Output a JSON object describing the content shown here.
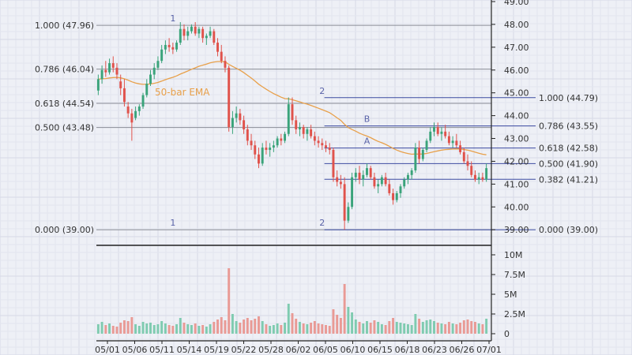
{
  "chart_data": {
    "type": "candlestick",
    "x_tick_labels": [
      "05/01",
      "05/06",
      "05/11",
      "05/14",
      "05/19",
      "05/22",
      "05/28",
      "06/02",
      "06/05",
      "06/10",
      "06/15",
      "06/18",
      "06/23",
      "06/26",
      "07/01"
    ],
    "price_axis": {
      "ylim": [
        38.8,
        49.0
      ],
      "ticks": [
        "39.00",
        "40.00",
        "41.00",
        "42.00",
        "43.00",
        "44.00",
        "45.00",
        "46.00",
        "47.00",
        "48.00",
        "49.00"
      ],
      "tick_values": [
        39,
        40,
        41,
        42,
        43,
        44,
        45,
        46,
        47,
        48,
        49
      ]
    },
    "volume_axis": {
      "ylim": [
        0,
        10500000
      ],
      "ticks": [
        "0",
        "2.5M",
        "5M",
        "7.5M",
        "10M"
      ],
      "tick_values": [
        0,
        2500000,
        5000000,
        7500000,
        10000000
      ]
    },
    "ema_label": "50-bar EMA",
    "fib_left": {
      "levels": [
        {
          "ratio": 1.0,
          "price": 47.96,
          "label": "1.000 (47.96)"
        },
        {
          "ratio": 0.786,
          "price": 46.04,
          "label": "0.786 (46.04)"
        },
        {
          "ratio": 0.618,
          "price": 44.54,
          "label": "0.618 (44.54)"
        },
        {
          "ratio": 0.5,
          "price": 43.48,
          "label": "0.500 (43.48)"
        },
        {
          "ratio": 0.0,
          "price": 39.0,
          "label": "0.000 (39.00)"
        }
      ],
      "markers": [
        {
          "text": "1",
          "price": 47.96,
          "bar": 20
        },
        {
          "text": "1",
          "price": 39.0,
          "bar": 20
        }
      ]
    },
    "fib_right": {
      "levels": [
        {
          "ratio": 1.0,
          "price": 44.79,
          "label": "1.000 (44.79)"
        },
        {
          "ratio": 0.786,
          "price": 43.55,
          "label": "0.786 (43.55)"
        },
        {
          "ratio": 0.618,
          "price": 42.58,
          "label": "0.618 (42.58)"
        },
        {
          "ratio": 0.5,
          "price": 41.9,
          "label": "0.500 (41.90)"
        },
        {
          "ratio": 0.382,
          "price": 41.21,
          "label": "0.382 (41.21)"
        },
        {
          "ratio": 0.0,
          "price": 39.0,
          "label": "0.000 (39.00)"
        }
      ],
      "markers": [
        {
          "text": "2",
          "price": 44.79,
          "bar": 60
        },
        {
          "text": "2",
          "price": 39.0,
          "bar": 60
        },
        {
          "text": "B",
          "price": 43.55,
          "bar": 72
        },
        {
          "text": "A",
          "price": 42.58,
          "bar": 72
        }
      ]
    },
    "bars": [
      [
        45.1,
        45.8,
        44.9,
        45.6,
        1200000
      ],
      [
        45.6,
        46.2,
        45.4,
        46.0,
        1500000
      ],
      [
        46.0,
        46.4,
        45.7,
        45.9,
        1100000
      ],
      [
        45.9,
        46.5,
        45.8,
        46.3,
        1300000
      ],
      [
        46.3,
        46.6,
        45.9,
        46.1,
        1000000
      ],
      [
        46.1,
        46.3,
        45.6,
        45.8,
        900000
      ],
      [
        45.5,
        45.8,
        44.9,
        45.2,
        1400000
      ],
      [
        45.2,
        45.6,
        44.4,
        44.6,
        1700000
      ],
      [
        44.4,
        44.6,
        43.9,
        44.1,
        1600000
      ],
      [
        44.1,
        44.3,
        42.9,
        43.7,
        2100000
      ],
      [
        43.9,
        44.4,
        43.8,
        44.2,
        1200000
      ],
      [
        44.2,
        44.5,
        44.0,
        44.4,
        1000000
      ],
      [
        44.4,
        45.0,
        44.3,
        44.9,
        1500000
      ],
      [
        44.9,
        45.6,
        44.8,
        45.4,
        1300000
      ],
      [
        45.4,
        46.0,
        45.3,
        45.8,
        1400000
      ],
      [
        45.8,
        46.3,
        45.6,
        46.1,
        1100000
      ],
      [
        46.1,
        46.6,
        46.0,
        46.4,
        1200000
      ],
      [
        46.4,
        47.1,
        46.3,
        46.9,
        1600000
      ],
      [
        46.9,
        47.3,
        46.7,
        47.1,
        1300000
      ],
      [
        47.1,
        47.4,
        46.8,
        47.0,
        1100000
      ],
      [
        47.0,
        47.2,
        46.7,
        46.9,
        1000000
      ],
      [
        46.9,
        47.3,
        46.8,
        47.2,
        1200000
      ],
      [
        47.2,
        48.1,
        47.1,
        47.8,
        2000000
      ],
      [
        47.8,
        48.0,
        47.3,
        47.5,
        1400000
      ],
      [
        47.5,
        47.9,
        47.3,
        47.7,
        1200000
      ],
      [
        47.7,
        48.0,
        47.6,
        47.9,
        1100000
      ],
      [
        47.9,
        48.1,
        47.5,
        47.6,
        1300000
      ],
      [
        47.6,
        47.9,
        47.4,
        47.8,
        1000000
      ],
      [
        47.8,
        47.9,
        47.2,
        47.4,
        1100000
      ],
      [
        47.4,
        47.6,
        47.1,
        47.5,
        900000
      ],
      [
        47.5,
        47.9,
        47.4,
        47.7,
        1200000
      ],
      [
        47.7,
        47.8,
        47.1,
        47.2,
        1500000
      ],
      [
        47.2,
        47.4,
        46.6,
        46.8,
        1800000
      ],
      [
        46.8,
        47.1,
        46.3,
        46.4,
        2100000
      ],
      [
        46.4,
        46.6,
        45.9,
        46.1,
        1700000
      ],
      [
        46.1,
        46.2,
        43.3,
        43.5,
        8300000
      ],
      [
        43.5,
        44.2,
        43.2,
        43.9,
        2500000
      ],
      [
        43.9,
        44.4,
        43.7,
        44.1,
        1600000
      ],
      [
        44.1,
        44.3,
        43.6,
        43.8,
        1400000
      ],
      [
        43.8,
        44.0,
        43.2,
        43.4,
        1800000
      ],
      [
        43.4,
        43.6,
        42.7,
        42.9,
        2000000
      ],
      [
        42.9,
        43.2,
        42.5,
        42.7,
        1700000
      ],
      [
        42.7,
        42.9,
        42.1,
        42.3,
        1900000
      ],
      [
        42.3,
        42.6,
        41.7,
        41.9,
        2200000
      ],
      [
        41.9,
        42.8,
        41.8,
        42.6,
        1600000
      ],
      [
        42.6,
        42.9,
        42.3,
        42.5,
        1200000
      ],
      [
        42.5,
        42.8,
        42.2,
        42.6,
        1000000
      ],
      [
        42.6,
        42.9,
        42.4,
        42.7,
        1100000
      ],
      [
        42.7,
        43.1,
        42.6,
        43.0,
        1300000
      ],
      [
        43.0,
        43.2,
        42.7,
        42.9,
        1100000
      ],
      [
        42.9,
        43.3,
        42.8,
        43.2,
        1400000
      ],
      [
        43.2,
        44.8,
        43.1,
        44.5,
        3800000
      ],
      [
        44.5,
        44.8,
        43.6,
        43.8,
        2600000
      ],
      [
        43.8,
        44.0,
        43.2,
        43.4,
        1900000
      ],
      [
        43.4,
        43.7,
        43.1,
        43.5,
        1500000
      ],
      [
        43.5,
        43.6,
        43.0,
        43.2,
        1300000
      ],
      [
        43.2,
        43.5,
        42.9,
        43.4,
        1200000
      ],
      [
        43.4,
        43.6,
        43.0,
        43.1,
        1400000
      ],
      [
        43.1,
        43.3,
        42.7,
        42.9,
        1600000
      ],
      [
        42.9,
        43.1,
        42.6,
        42.8,
        1300000
      ],
      [
        42.8,
        43.0,
        42.5,
        42.7,
        1200000
      ],
      [
        42.7,
        42.9,
        42.4,
        42.6,
        1100000
      ],
      [
        42.6,
        42.8,
        42.3,
        42.5,
        1000000
      ],
      [
        42.5,
        42.6,
        41.1,
        41.3,
        3100000
      ],
      [
        41.3,
        41.6,
        40.9,
        41.1,
        2400000
      ],
      [
        41.1,
        41.4,
        40.8,
        41.0,
        2000000
      ],
      [
        41.0,
        41.3,
        39.0,
        39.4,
        6300000
      ],
      [
        39.4,
        40.2,
        39.3,
        40.0,
        3400000
      ],
      [
        40.0,
        41.5,
        39.9,
        41.3,
        2700000
      ],
      [
        41.3,
        41.7,
        41.1,
        41.5,
        1800000
      ],
      [
        41.5,
        41.8,
        41.0,
        41.2,
        1500000
      ],
      [
        41.2,
        41.6,
        40.9,
        41.4,
        1300000
      ],
      [
        41.4,
        41.9,
        41.3,
        41.7,
        1600000
      ],
      [
        41.7,
        41.8,
        41.2,
        41.3,
        1400000
      ],
      [
        41.3,
        41.5,
        40.8,
        40.9,
        1700000
      ],
      [
        40.9,
        41.2,
        40.6,
        41.0,
        1500000
      ],
      [
        41.0,
        41.4,
        40.9,
        41.3,
        1200000
      ],
      [
        41.3,
        41.5,
        40.9,
        41.0,
        1100000
      ],
      [
        41.0,
        41.2,
        40.5,
        40.6,
        1600000
      ],
      [
        40.6,
        40.8,
        40.1,
        40.3,
        2000000
      ],
      [
        40.3,
        40.7,
        40.2,
        40.6,
        1500000
      ],
      [
        40.6,
        41.0,
        40.4,
        40.9,
        1400000
      ],
      [
        40.9,
        41.3,
        40.8,
        41.2,
        1300000
      ],
      [
        41.2,
        41.5,
        41.0,
        41.4,
        1200000
      ],
      [
        41.4,
        41.7,
        41.2,
        41.6,
        1100000
      ],
      [
        41.6,
        42.8,
        41.5,
        42.6,
        2500000
      ],
      [
        42.6,
        42.9,
        41.9,
        42.1,
        1900000
      ],
      [
        42.1,
        42.6,
        42.0,
        42.5,
        1500000
      ],
      [
        42.5,
        43.0,
        42.4,
        42.9,
        1700000
      ],
      [
        42.9,
        43.5,
        42.8,
        43.3,
        1800000
      ],
      [
        43.3,
        43.7,
        43.1,
        43.5,
        1600000
      ],
      [
        43.5,
        43.7,
        43.1,
        43.2,
        1400000
      ],
      [
        43.2,
        43.5,
        42.9,
        43.3,
        1300000
      ],
      [
        43.3,
        43.6,
        43.0,
        43.1,
        1200000
      ],
      [
        43.1,
        43.3,
        42.7,
        42.8,
        1500000
      ],
      [
        42.8,
        43.1,
        42.6,
        42.9,
        1300000
      ],
      [
        42.9,
        43.2,
        42.6,
        42.7,
        1200000
      ],
      [
        42.7,
        42.9,
        42.3,
        42.4,
        1400000
      ],
      [
        42.4,
        42.6,
        41.9,
        42.0,
        1700000
      ],
      [
        42.0,
        42.3,
        41.6,
        41.8,
        1800000
      ],
      [
        41.8,
        42.0,
        41.3,
        41.4,
        1600000
      ],
      [
        41.4,
        41.6,
        41.1,
        41.2,
        1500000
      ],
      [
        41.2,
        41.5,
        41.0,
        41.3,
        1300000
      ],
      [
        41.3,
        41.5,
        41.1,
        41.2,
        1200000
      ],
      [
        41.2,
        41.9,
        41.1,
        41.7,
        1900000
      ]
    ]
  }
}
